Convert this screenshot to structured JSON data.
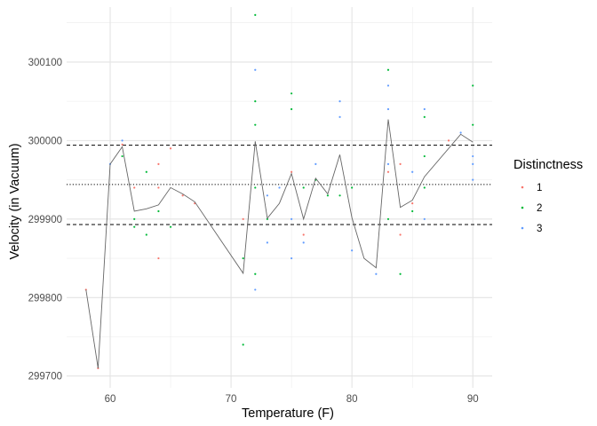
{
  "chart_data": {
    "type": "scatter",
    "title": "",
    "xlabel": "Temperature (F)",
    "ylabel": "Velocity (in Vacuum)",
    "xlim": [
      56.4,
      91.6
    ],
    "ylim": [
      299685,
      300170
    ],
    "x_ticks": [
      60,
      70,
      80,
      90
    ],
    "y_ticks": [
      299700,
      299800,
      299900,
      300000,
      300100
    ],
    "grid": true,
    "legend": {
      "title": "Distinctness",
      "position": "right",
      "entries": [
        "1",
        "2",
        "3"
      ]
    },
    "colors": {
      "1": "#F8766D",
      "2": "#00BA38",
      "3": "#619CFF",
      "line": "#666666",
      "ref": "#000000"
    },
    "series": [
      {
        "name": "1",
        "points": [
          {
            "x": 58,
            "y": 299810
          },
          {
            "x": 59,
            "y": 299710
          },
          {
            "x": 61,
            "y": 299995
          },
          {
            "x": 62,
            "y": 299940
          },
          {
            "x": 64,
            "y": 299850
          },
          {
            "x": 64,
            "y": 299940
          },
          {
            "x": 64,
            "y": 299970
          },
          {
            "x": 65,
            "y": 299990
          },
          {
            "x": 66,
            "y": 299930
          },
          {
            "x": 67,
            "y": 299920
          },
          {
            "x": 71,
            "y": 299900
          },
          {
            "x": 75,
            "y": 299960
          },
          {
            "x": 76,
            "y": 299880
          },
          {
            "x": 83,
            "y": 299960
          },
          {
            "x": 84,
            "y": 299880
          },
          {
            "x": 84,
            "y": 299970
          },
          {
            "x": 85,
            "y": 299920
          },
          {
            "x": 88,
            "y": 300000
          }
        ]
      },
      {
        "name": "2",
        "points": [
          {
            "x": 61,
            "y": 299980
          },
          {
            "x": 62,
            "y": 299890
          },
          {
            "x": 62,
            "y": 299900
          },
          {
            "x": 63,
            "y": 299880
          },
          {
            "x": 63,
            "y": 299960
          },
          {
            "x": 64,
            "y": 299910
          },
          {
            "x": 65,
            "y": 299890
          },
          {
            "x": 71,
            "y": 299740
          },
          {
            "x": 71,
            "y": 299850
          },
          {
            "x": 72,
            "y": 299830
          },
          {
            "x": 72,
            "y": 299940
          },
          {
            "x": 72,
            "y": 300020
          },
          {
            "x": 72,
            "y": 300050
          },
          {
            "x": 72,
            "y": 300160
          },
          {
            "x": 73,
            "y": 299900
          },
          {
            "x": 75,
            "y": 300040
          },
          {
            "x": 75,
            "y": 300060
          },
          {
            "x": 76,
            "y": 299940
          },
          {
            "x": 77,
            "y": 299950
          },
          {
            "x": 78,
            "y": 299930
          },
          {
            "x": 79,
            "y": 299930
          },
          {
            "x": 80,
            "y": 299940
          },
          {
            "x": 83,
            "y": 299900
          },
          {
            "x": 83,
            "y": 300090
          },
          {
            "x": 84,
            "y": 299830
          },
          {
            "x": 85,
            "y": 299910
          },
          {
            "x": 86,
            "y": 299940
          },
          {
            "x": 86,
            "y": 299980
          },
          {
            "x": 86,
            "y": 300030
          },
          {
            "x": 90,
            "y": 300020
          },
          {
            "x": 90,
            "y": 300070
          }
        ]
      },
      {
        "name": "3",
        "points": [
          {
            "x": 60,
            "y": 299970
          },
          {
            "x": 61,
            "y": 300000
          },
          {
            "x": 72,
            "y": 299810
          },
          {
            "x": 72,
            "y": 300090
          },
          {
            "x": 73,
            "y": 299870
          },
          {
            "x": 73,
            "y": 299930
          },
          {
            "x": 74,
            "y": 299940
          },
          {
            "x": 75,
            "y": 299850
          },
          {
            "x": 75,
            "y": 299900
          },
          {
            "x": 76,
            "y": 299870
          },
          {
            "x": 77,
            "y": 299970
          },
          {
            "x": 79,
            "y": 300030
          },
          {
            "x": 79,
            "y": 300050
          },
          {
            "x": 80,
            "y": 299860
          },
          {
            "x": 82,
            "y": 299830
          },
          {
            "x": 83,
            "y": 299970
          },
          {
            "x": 83,
            "y": 300040
          },
          {
            "x": 83,
            "y": 300070
          },
          {
            "x": 85,
            "y": 299960
          },
          {
            "x": 86,
            "y": 299900
          },
          {
            "x": 86,
            "y": 300040
          },
          {
            "x": 89,
            "y": 300010
          },
          {
            "x": 90,
            "y": 299950
          },
          {
            "x": 90,
            "y": 299970
          },
          {
            "x": 90,
            "y": 299980
          }
        ]
      }
    ],
    "mean_line": {
      "x": [
        58,
        59,
        60,
        61,
        62,
        63,
        64,
        65,
        66,
        67,
        71,
        72,
        73,
        74,
        75,
        76,
        77,
        78,
        79,
        80,
        81,
        82,
        83,
        84,
        85,
        86,
        89,
        90
      ],
      "y": [
        299810,
        299710,
        299970,
        299992,
        299910,
        299913,
        299918,
        299940,
        299932,
        299922,
        299831,
        299999,
        299901,
        299920,
        299958,
        299900,
        299952,
        299932,
        299982,
        299902,
        299850,
        299838,
        300027,
        299915,
        299924,
        299954,
        300008,
        299998
      ]
    },
    "reference_lines": [
      {
        "y": 299994,
        "style": "dashed"
      },
      {
        "y": 299944,
        "style": "dotted"
      },
      {
        "y": 299893,
        "style": "dashed"
      }
    ]
  }
}
